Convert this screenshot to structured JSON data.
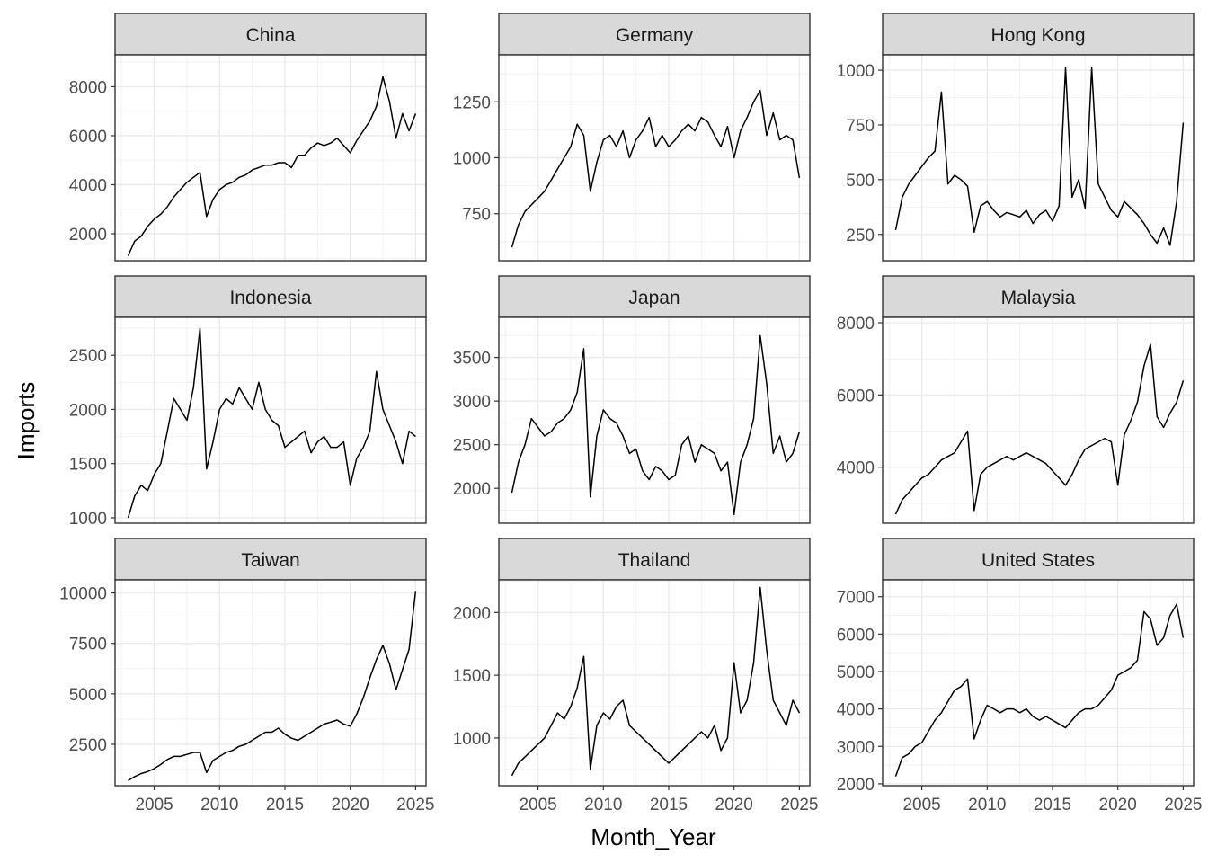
{
  "figure": {
    "xlabel": "Month_Year",
    "ylabel": "Imports"
  },
  "chart_data": [
    {
      "type": "line",
      "title": "China",
      "x_range": [
        2003,
        2025
      ],
      "xticks": [
        2005,
        2010,
        2015,
        2020,
        2025
      ],
      "ylim": [
        900,
        9300
      ],
      "yticks": [
        2000,
        4000,
        6000,
        8000
      ],
      "grid": true,
      "series": [
        {
          "x": [
            2003,
            2003.5,
            2004,
            2004.5,
            2005,
            2005.5,
            2006,
            2006.5,
            2007,
            2007.5,
            2008,
            2008.5,
            2009,
            2009.5,
            2010,
            2010.5,
            2011,
            2011.5,
            2012,
            2012.5,
            2013,
            2013.5,
            2014,
            2014.5,
            2015,
            2015.5,
            2016,
            2016.5,
            2017,
            2017.5,
            2018,
            2018.5,
            2019,
            2019.5,
            2020,
            2020.5,
            2021,
            2021.5,
            2022,
            2022.5,
            2023,
            2023.5,
            2024,
            2024.5,
            2025
          ],
          "y": [
            1100,
            1700,
            1900,
            2300,
            2600,
            2800,
            3100,
            3500,
            3800,
            4100,
            4300,
            4500,
            2700,
            3400,
            3800,
            4000,
            4100,
            4300,
            4400,
            4600,
            4700,
            4800,
            4800,
            4900,
            4900,
            4700,
            5200,
            5200,
            5500,
            5700,
            5600,
            5700,
            5900,
            5600,
            5300,
            5800,
            6200,
            6600,
            7200,
            8400,
            7400,
            5900,
            6900,
            6200,
            6900
          ]
        }
      ]
    },
    {
      "type": "line",
      "title": "Germany",
      "x_range": [
        2003,
        2025
      ],
      "xticks": [
        2005,
        2010,
        2015,
        2020,
        2025
      ],
      "ylim": [
        540,
        1460
      ],
      "yticks": [
        750,
        1000,
        1250
      ],
      "grid": true,
      "series": [
        {
          "x": [
            2003,
            2003.5,
            2004,
            2004.5,
            2005,
            2005.5,
            2006,
            2006.5,
            2007,
            2007.5,
            2008,
            2008.5,
            2009,
            2009.5,
            2010,
            2010.5,
            2011,
            2011.5,
            2012,
            2012.5,
            2013,
            2013.5,
            2014,
            2014.5,
            2015,
            2015.5,
            2016,
            2016.5,
            2017,
            2017.5,
            2018,
            2018.5,
            2019,
            2019.5,
            2020,
            2020.5,
            2021,
            2021.5,
            2022,
            2022.5,
            2023,
            2023.5,
            2024,
            2024.5,
            2025
          ],
          "y": [
            600,
            700,
            760,
            790,
            820,
            850,
            900,
            950,
            1000,
            1050,
            1150,
            1100,
            850,
            980,
            1080,
            1100,
            1050,
            1120,
            1000,
            1080,
            1120,
            1180,
            1050,
            1100,
            1050,
            1080,
            1120,
            1150,
            1120,
            1180,
            1160,
            1100,
            1050,
            1140,
            1000,
            1120,
            1180,
            1250,
            1300,
            1100,
            1200,
            1080,
            1100,
            1080,
            910
          ]
        }
      ]
    },
    {
      "type": "line",
      "title": "Hong Kong",
      "x_range": [
        2003,
        2025
      ],
      "xticks": [
        2005,
        2010,
        2015,
        2020,
        2025
      ],
      "ylim": [
        130,
        1070
      ],
      "yticks": [
        250,
        500,
        750,
        1000
      ],
      "grid": true,
      "series": [
        {
          "x": [
            2003,
            2003.5,
            2004,
            2004.5,
            2005,
            2005.5,
            2006,
            2006.5,
            2007,
            2007.5,
            2008,
            2008.5,
            2009,
            2009.5,
            2010,
            2010.5,
            2011,
            2011.5,
            2012,
            2012.5,
            2013,
            2013.5,
            2014,
            2014.5,
            2015,
            2015.5,
            2016,
            2016.5,
            2017,
            2017.5,
            2018,
            2018.5,
            2019,
            2019.5,
            2020,
            2020.5,
            2021,
            2021.5,
            2022,
            2022.5,
            2023,
            2023.5,
            2024,
            2024.5,
            2025
          ],
          "y": [
            270,
            420,
            480,
            520,
            560,
            600,
            630,
            900,
            480,
            520,
            500,
            470,
            260,
            380,
            400,
            360,
            330,
            350,
            340,
            330,
            360,
            300,
            340,
            360,
            310,
            380,
            1010,
            420,
            500,
            370,
            1010,
            480,
            420,
            360,
            330,
            400,
            370,
            340,
            300,
            250,
            210,
            280,
            200,
            400,
            760
          ]
        }
      ]
    },
    {
      "type": "line",
      "title": "Indonesia",
      "x_range": [
        2003,
        2025
      ],
      "xticks": [
        2005,
        2010,
        2015,
        2020,
        2025
      ],
      "ylim": [
        950,
        2850
      ],
      "yticks": [
        1000,
        1500,
        2000,
        2500
      ],
      "grid": true,
      "series": [
        {
          "x": [
            2003,
            2003.5,
            2004,
            2004.5,
            2005,
            2005.5,
            2006,
            2006.5,
            2007,
            2007.5,
            2008,
            2008.5,
            2009,
            2009.5,
            2010,
            2010.5,
            2011,
            2011.5,
            2012,
            2012.5,
            2013,
            2013.5,
            2014,
            2014.5,
            2015,
            2015.5,
            2016,
            2016.5,
            2017,
            2017.5,
            2018,
            2018.5,
            2019,
            2019.5,
            2020,
            2020.5,
            2021,
            2021.5,
            2022,
            2022.5,
            2023,
            2023.5,
            2024,
            2024.5,
            2025
          ],
          "y": [
            1000,
            1200,
            1300,
            1250,
            1400,
            1500,
            1800,
            2100,
            2000,
            1900,
            2200,
            2750,
            1450,
            1700,
            2000,
            2100,
            2050,
            2200,
            2100,
            2000,
            2250,
            2000,
            1900,
            1850,
            1650,
            1700,
            1750,
            1800,
            1600,
            1700,
            1750,
            1650,
            1650,
            1700,
            1300,
            1550,
            1650,
            1800,
            2350,
            2000,
            1850,
            1700,
            1500,
            1800,
            1750
          ]
        }
      ]
    },
    {
      "type": "line",
      "title": "Japan",
      "x_range": [
        2003,
        2025
      ],
      "xticks": [
        2005,
        2010,
        2015,
        2020,
        2025
      ],
      "ylim": [
        1600,
        3960
      ],
      "yticks": [
        2000,
        2500,
        3000,
        3500
      ],
      "grid": true,
      "series": [
        {
          "x": [
            2003,
            2003.5,
            2004,
            2004.5,
            2005,
            2005.5,
            2006,
            2006.5,
            2007,
            2007.5,
            2008,
            2008.5,
            2009,
            2009.5,
            2010,
            2010.5,
            2011,
            2011.5,
            2012,
            2012.5,
            2013,
            2013.5,
            2014,
            2014.5,
            2015,
            2015.5,
            2016,
            2016.5,
            2017,
            2017.5,
            2018,
            2018.5,
            2019,
            2019.5,
            2020,
            2020.5,
            2021,
            2021.5,
            2022,
            2022.5,
            2023,
            2023.5,
            2024,
            2024.5,
            2025
          ],
          "y": [
            1950,
            2300,
            2500,
            2800,
            2700,
            2600,
            2650,
            2750,
            2800,
            2900,
            3100,
            3600,
            1900,
            2600,
            2900,
            2800,
            2750,
            2600,
            2400,
            2450,
            2200,
            2100,
            2250,
            2200,
            2100,
            2150,
            2500,
            2600,
            2300,
            2500,
            2450,
            2400,
            2200,
            2300,
            1700,
            2300,
            2500,
            2800,
            3750,
            3200,
            2400,
            2600,
            2300,
            2400,
            2650
          ]
        }
      ]
    },
    {
      "type": "line",
      "title": "Malaysia",
      "x_range": [
        2003,
        2025
      ],
      "xticks": [
        2005,
        2010,
        2015,
        2020,
        2025
      ],
      "ylim": [
        2450,
        8150
      ],
      "yticks": [
        4000,
        6000,
        8000
      ],
      "grid": true,
      "series": [
        {
          "x": [
            2003,
            2003.5,
            2004,
            2004.5,
            2005,
            2005.5,
            2006,
            2006.5,
            2007,
            2007.5,
            2008,
            2008.5,
            2009,
            2009.5,
            2010,
            2010.5,
            2011,
            2011.5,
            2012,
            2012.5,
            2013,
            2013.5,
            2014,
            2014.5,
            2015,
            2015.5,
            2016,
            2016.5,
            2017,
            2017.5,
            2018,
            2018.5,
            2019,
            2019.5,
            2020,
            2020.5,
            2021,
            2021.5,
            2022,
            2022.5,
            2023,
            2023.5,
            2024,
            2024.5,
            2025
          ],
          "y": [
            2700,
            3100,
            3300,
            3500,
            3700,
            3800,
            4000,
            4200,
            4300,
            4400,
            4700,
            5000,
            2800,
            3800,
            4000,
            4100,
            4200,
            4300,
            4200,
            4300,
            4400,
            4300,
            4200,
            4100,
            3900,
            3700,
            3500,
            3800,
            4200,
            4500,
            4600,
            4700,
            4800,
            4700,
            3500,
            4900,
            5300,
            5800,
            6800,
            7400,
            5400,
            5100,
            5500,
            5800,
            6400
          ]
        }
      ]
    },
    {
      "type": "line",
      "title": "Taiwan",
      "x_range": [
        2003,
        2025
      ],
      "xticks": [
        2005,
        2010,
        2015,
        2020,
        2025
      ],
      "ylim": [
        450,
        10650
      ],
      "yticks": [
        2500,
        5000,
        7500,
        10000
      ],
      "grid": true,
      "series": [
        {
          "x": [
            2003,
            2003.5,
            2004,
            2004.5,
            2005,
            2005.5,
            2006,
            2006.5,
            2007,
            2007.5,
            2008,
            2008.5,
            2009,
            2009.5,
            2010,
            2010.5,
            2011,
            2011.5,
            2012,
            2012.5,
            2013,
            2013.5,
            2014,
            2014.5,
            2015,
            2015.5,
            2016,
            2016.5,
            2017,
            2017.5,
            2018,
            2018.5,
            2019,
            2019.5,
            2020,
            2020.5,
            2021,
            2021.5,
            2022,
            2022.5,
            2023,
            2023.5,
            2024,
            2024.5,
            2025
          ],
          "y": [
            700,
            900,
            1050,
            1150,
            1300,
            1500,
            1750,
            1900,
            1900,
            2000,
            2100,
            2100,
            1100,
            1700,
            1900,
            2100,
            2200,
            2400,
            2500,
            2700,
            2900,
            3100,
            3100,
            3300,
            3000,
            2800,
            2700,
            2900,
            3100,
            3300,
            3500,
            3600,
            3700,
            3500,
            3400,
            4000,
            4800,
            5800,
            6700,
            7400,
            6500,
            5200,
            6200,
            7200,
            10100
          ]
        }
      ]
    },
    {
      "type": "line",
      "title": "Thailand",
      "x_range": [
        2003,
        2025
      ],
      "xticks": [
        2005,
        2010,
        2015,
        2020,
        2025
      ],
      "ylim": [
        620,
        2260
      ],
      "yticks": [
        1000,
        1500,
        2000
      ],
      "grid": true,
      "series": [
        {
          "x": [
            2003,
            2003.5,
            2004,
            2004.5,
            2005,
            2005.5,
            2006,
            2006.5,
            2007,
            2007.5,
            2008,
            2008.5,
            2009,
            2009.5,
            2010,
            2010.5,
            2011,
            2011.5,
            2012,
            2012.5,
            2013,
            2013.5,
            2014,
            2014.5,
            2015,
            2015.5,
            2016,
            2016.5,
            2017,
            2017.5,
            2018,
            2018.5,
            2019,
            2019.5,
            2020,
            2020.5,
            2021,
            2021.5,
            2022,
            2022.5,
            2023,
            2023.5,
            2024,
            2024.5,
            2025
          ],
          "y": [
            700,
            800,
            850,
            900,
            950,
            1000,
            1100,
            1200,
            1150,
            1250,
            1400,
            1650,
            750,
            1100,
            1200,
            1150,
            1250,
            1300,
            1100,
            1050,
            1000,
            950,
            900,
            850,
            800,
            850,
            900,
            950,
            1000,
            1050,
            1000,
            1100,
            900,
            1000,
            1600,
            1200,
            1300,
            1600,
            2200,
            1700,
            1300,
            1200,
            1100,
            1300,
            1200
          ]
        }
      ]
    },
    {
      "type": "line",
      "title": "United States",
      "x_range": [
        2003,
        2025
      ],
      "xticks": [
        2005,
        2010,
        2015,
        2020,
        2025
      ],
      "ylim": [
        1950,
        7450
      ],
      "yticks": [
        2000,
        3000,
        4000,
        5000,
        6000,
        7000
      ],
      "grid": true,
      "series": [
        {
          "x": [
            2003,
            2003.5,
            2004,
            2004.5,
            2005,
            2005.5,
            2006,
            2006.5,
            2007,
            2007.5,
            2008,
            2008.5,
            2009,
            2009.5,
            2010,
            2010.5,
            2011,
            2011.5,
            2012,
            2012.5,
            2013,
            2013.5,
            2014,
            2014.5,
            2015,
            2015.5,
            2016,
            2016.5,
            2017,
            2017.5,
            2018,
            2018.5,
            2019,
            2019.5,
            2020,
            2020.5,
            2021,
            2021.5,
            2022,
            2022.5,
            2023,
            2023.5,
            2024,
            2024.5,
            2025
          ],
          "y": [
            2200,
            2700,
            2800,
            3000,
            3100,
            3400,
            3700,
            3900,
            4200,
            4500,
            4600,
            4800,
            3200,
            3700,
            4100,
            4000,
            3900,
            4000,
            4000,
            3900,
            4000,
            3800,
            3700,
            3800,
            3700,
            3600,
            3500,
            3700,
            3900,
            4000,
            4000,
            4100,
            4300,
            4500,
            4900,
            5000,
            5100,
            5300,
            6600,
            6400,
            5700,
            5900,
            6500,
            6800,
            5900
          ]
        }
      ]
    }
  ]
}
